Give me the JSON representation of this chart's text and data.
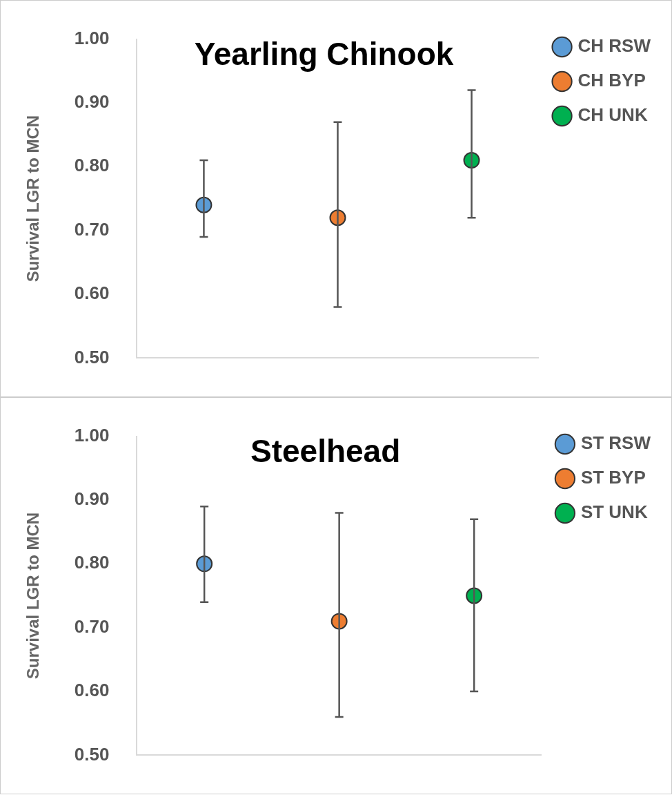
{
  "chart_data": [
    {
      "type": "scatter",
      "title": "Yearling Chinook",
      "ylabel": "Survival LGR to MCN",
      "categories": [
        null,
        null,
        null
      ],
      "ylim": [
        0.5,
        1.0
      ],
      "yticks": [
        {
          "value": 0.5,
          "label": "0.50"
        },
        {
          "value": 0.6,
          "label": "0.60"
        },
        {
          "value": 0.7,
          "label": "0.70"
        },
        {
          "value": 0.8,
          "label": "0.80"
        },
        {
          "value": 0.9,
          "label": "0.90"
        },
        {
          "value": 1.0,
          "label": "1.00"
        }
      ],
      "grid": false,
      "legend": "top right",
      "marker": "circle",
      "series": [
        {
          "name": "CH RSW",
          "color": "#5b9bd5",
          "values": [
            0.74,
            null,
            null
          ],
          "errors": [
            [
              0.69,
              0.81
            ],
            null,
            null
          ]
        },
        {
          "name": "CH BYP",
          "color": "#ed7d31",
          "values": [
            null,
            0.72,
            null
          ],
          "errors": [
            null,
            [
              0.58,
              0.87
            ],
            null
          ]
        },
        {
          "name": "CH UNK",
          "color": "#00b050",
          "values": [
            null,
            null,
            0.81
          ],
          "errors": [
            null,
            null,
            [
              0.72,
              0.92
            ]
          ]
        }
      ]
    },
    {
      "type": "scatter",
      "title": "Steelhead",
      "ylabel": "Survival LGR to MCN",
      "categories": [
        null,
        null,
        null
      ],
      "ylim": [
        0.5,
        1.0
      ],
      "yticks": [
        {
          "value": 0.5,
          "label": "0.50"
        },
        {
          "value": 0.6,
          "label": "0.60"
        },
        {
          "value": 0.7,
          "label": "0.70"
        },
        {
          "value": 0.8,
          "label": "0.80"
        },
        {
          "value": 0.9,
          "label": "0.90"
        },
        {
          "value": 1.0,
          "label": "1.00"
        }
      ],
      "grid": false,
      "legend": "top right",
      "marker": "circle",
      "series": [
        {
          "name": "ST RSW",
          "color": "#5b9bd5",
          "values": [
            0.8,
            null,
            null
          ],
          "errors": [
            [
              0.74,
              0.89
            ],
            null,
            null
          ]
        },
        {
          "name": "ST BYP",
          "color": "#ed7d31",
          "values": [
            null,
            0.71,
            null
          ],
          "errors": [
            null,
            [
              0.56,
              0.88
            ],
            null
          ]
        },
        {
          "name": "ST UNK",
          "color": "#00b050",
          "values": [
            null,
            null,
            0.75
          ],
          "errors": [
            null,
            null,
            [
              0.6,
              0.87
            ]
          ]
        }
      ]
    }
  ]
}
